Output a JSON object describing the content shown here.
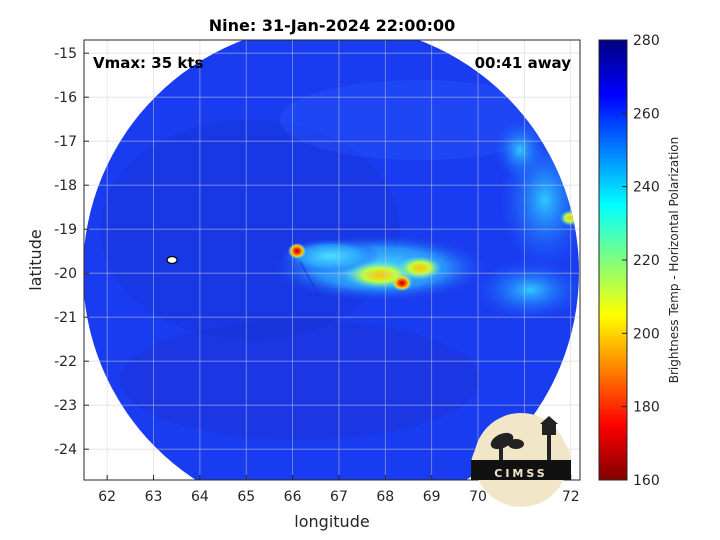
{
  "chart_data": {
    "type": "heatmap",
    "title": "Nine: 31-Jan-2024 22:00:00",
    "xlabel": "longitude",
    "ylabel": "latitude",
    "xlim": [
      61.5,
      72.2
    ],
    "ylim": [
      -24.7,
      -14.7
    ],
    "x_ticks": [
      "62",
      "63",
      "64",
      "65",
      "66",
      "67",
      "68",
      "69",
      "70",
      "71",
      "72"
    ],
    "y_ticks": [
      "-15",
      "-16",
      "-17",
      "-18",
      "-19",
      "-20",
      "-21",
      "-22",
      "-23",
      "-24"
    ],
    "grid": true,
    "annotations": {
      "vmax": "Vmax: 35 kts",
      "time_away": "00:41 away"
    },
    "storm_center": {
      "lon": 63.4,
      "lat": -19.7
    },
    "colorbar": {
      "label": "Brightness Temp - Horizontal Polarization",
      "min": 160,
      "max": 280,
      "ticks": [
        "280",
        "260",
        "240",
        "220",
        "200",
        "180",
        "160"
      ],
      "colormap": "jet"
    },
    "background_value": 262,
    "features": [
      {
        "name": "convective band",
        "lon": 67.5,
        "lat": -19.9,
        "value": 235
      },
      {
        "name": "hot spot",
        "lon": 66.0,
        "lat": -19.5,
        "value": 185
      },
      {
        "name": "hot spot",
        "lon": 68.3,
        "lat": -20.2,
        "value": 190
      },
      {
        "name": "hot spot",
        "lon": 67.7,
        "lat": -20.0,
        "value": 205
      },
      {
        "name": "convection",
        "lon": 71.0,
        "lat": -18.5,
        "value": 240
      },
      {
        "name": "convection",
        "lon": 71.3,
        "lat": -20.5,
        "value": 238
      },
      {
        "name": "hot spot",
        "lon": 71.9,
        "lat": -19.1,
        "value": 210
      }
    ]
  },
  "logo": {
    "text": "CIMSS"
  },
  "colors": {
    "swath_fill": "#1a3cf0",
    "grid": "#d0d0d0",
    "axis": "#262626"
  }
}
